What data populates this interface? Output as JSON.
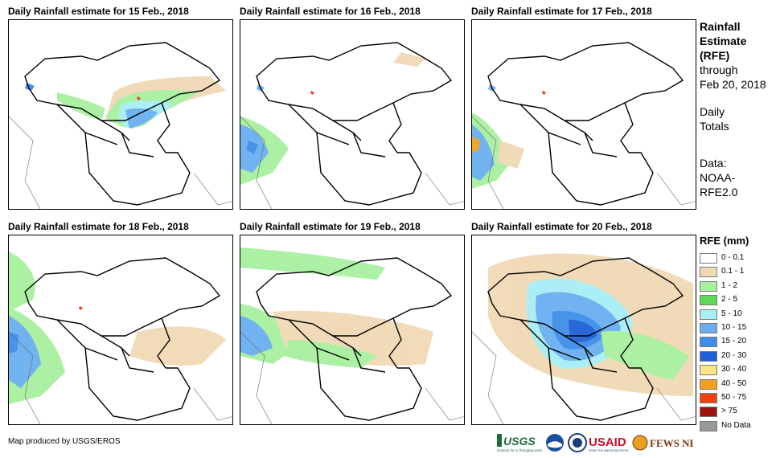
{
  "panels": [
    {
      "title": "Daily Rainfall estimate for 15 Feb., 2018"
    },
    {
      "title": "Daily Rainfall estimate for 16 Feb., 2018"
    },
    {
      "title": "Daily Rainfall estimate for 17 Feb., 2018"
    },
    {
      "title": "Daily Rainfall estimate for 18 Feb., 2018"
    },
    {
      "title": "Daily Rainfall estimate for 19 Feb., 2018"
    },
    {
      "title": "Daily Rainfall estimate for 20 Feb., 2018"
    }
  ],
  "sidebar": {
    "line1": "Rainfall",
    "line2": "Estimate",
    "line3": "(RFE)",
    "line4": "through",
    "line5": "Feb 20, 2018",
    "line6": "Daily",
    "line7": "Totals",
    "line8": "Data:",
    "line9": "NOAA-",
    "line10": "RFE2.0"
  },
  "legend": {
    "title": "RFE (mm)",
    "items": [
      {
        "label": "0 - 0.1",
        "color": "#ffffff"
      },
      {
        "label": "0.1 - 1",
        "color": "#f0d9b5"
      },
      {
        "label": "1 - 2",
        "color": "#a8f0a0"
      },
      {
        "label": "2 - 5",
        "color": "#5fd85a"
      },
      {
        "label": "5 - 10",
        "color": "#a8eef5"
      },
      {
        "label": "10 - 15",
        "color": "#6aaef0"
      },
      {
        "label": "15 - 20",
        "color": "#3d8ee8"
      },
      {
        "label": "20 - 30",
        "color": "#1f5fd6"
      },
      {
        "label": "30 - 40",
        "color": "#fde58a"
      },
      {
        "label": "40 - 50",
        "color": "#f5a020"
      },
      {
        "label": "50 - 75",
        "color": "#f04010"
      },
      {
        "label": "> 75",
        "color": "#a01010"
      },
      {
        "label": "No Data",
        "color": "#999999"
      }
    ]
  },
  "footer": {
    "credit": "Map produced by USGS/EROS"
  },
  "logos": {
    "usgs": "USGS",
    "usgs_tag": "science for a changing world",
    "usaid": "USAID",
    "usaid_tag": "FROM THE AMERICAN PEOPLE",
    "fews": "FEWS NET"
  }
}
